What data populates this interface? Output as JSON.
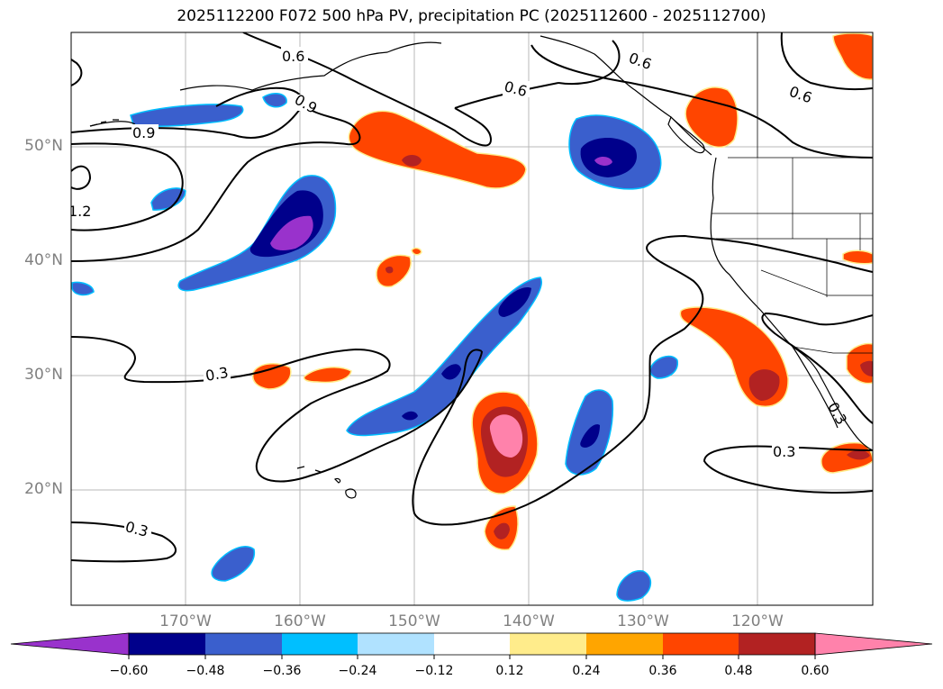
{
  "title": "2025112200 F072 500 hPa PV, precipitation PC (2025112600 - 2025112700)",
  "lat_labels": [
    "50°N",
    "40°N",
    "30°N",
    "20°N"
  ],
  "lon_labels": [
    "170°W",
    "160°W",
    "150°W",
    "140°W",
    "130°W",
    "120°W"
  ],
  "contour_labels": [
    "0.6",
    "0.9",
    "0.6",
    "0.6",
    "0.6",
    "0.9",
    "1.2",
    "0.3",
    "0.3",
    "0.3",
    "0.3"
  ],
  "colorbar": {
    "ticks": [
      "−0.60",
      "−0.48",
      "−0.36",
      "−0.24",
      "−0.12",
      "0.12",
      "0.24",
      "0.36",
      "0.48",
      "0.60"
    ],
    "colors": [
      "#9932cc",
      "#00008b",
      "#3a5fcd",
      "#00bfff",
      "#b0e2ff",
      "#ffffff",
      "#ffec8b",
      "#ffa500",
      "#ff4500",
      "#b22222",
      "#ff82ab"
    ]
  },
  "colors": {
    "neg_dark": "#00008b",
    "neg_mid": "#3a5fcd",
    "neg_light": "#00bfff",
    "neg_purple": "#9932cc",
    "pos_orange": "#ff4500",
    "pos_red": "#b22222",
    "pos_pink": "#ff82ab",
    "grid": "#b0b0b0",
    "axis_text": "#808080"
  }
}
